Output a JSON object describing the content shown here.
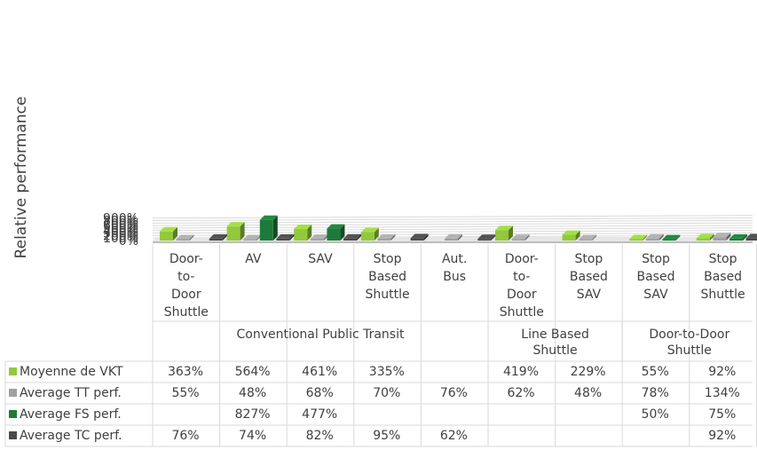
{
  "chart_data": {
    "type": "bar",
    "ylabel": "Relative performance",
    "ylim": [
      0,
      900
    ],
    "yticks": [
      "0%",
      "100%",
      "200%",
      "300%",
      "400%",
      "500%",
      "600%",
      "700%",
      "800%",
      "900%"
    ],
    "categories": [
      "Door-to-Door Shuttle",
      "AV",
      "SAV",
      "Stop Based Shuttle",
      "Aut. Bus",
      "Door-to-Door Shuttle",
      "Stop Based SAV",
      "Stop Based SAV",
      "Stop Based Shuttle"
    ],
    "category_labels": [
      [
        "Door-",
        "to-",
        "Door",
        "Shuttle"
      ],
      [
        "AV"
      ],
      [
        "SAV"
      ],
      [
        "Stop",
        "Based",
        "Shuttle"
      ],
      [
        "Aut.",
        "Bus"
      ],
      [
        "Door-",
        "to-",
        "Door",
        "Shuttle"
      ],
      [
        "Stop",
        "Based",
        "SAV"
      ],
      [
        "Stop",
        "Based",
        "SAV"
      ],
      [
        "Stop",
        "Based",
        "Shuttle"
      ]
    ],
    "groups": [
      {
        "lines": [
          "Conventional Public Transit"
        ],
        "span": 5
      },
      {
        "lines": [
          "Line Based",
          "Shuttle"
        ],
        "span": 2
      },
      {
        "lines": [
          "Door-to-Door",
          "Shuttle"
        ],
        "span": 2
      }
    ],
    "series": [
      {
        "name": "Moyenne de VKT",
        "color": "#92c83e",
        "values": [
          363,
          564,
          461,
          335,
          null,
          419,
          229,
          55,
          92
        ],
        "labels": [
          "363%",
          "564%",
          "461%",
          "335%",
          "",
          "419%",
          "229%",
          "55%",
          "92%"
        ]
      },
      {
        "name": "Average TT perf.",
        "color": "#a0a0a0",
        "values": [
          55,
          48,
          68,
          70,
          76,
          62,
          48,
          78,
          134
        ],
        "labels": [
          "55%",
          "48%",
          "68%",
          "70%",
          "76%",
          "62%",
          "48%",
          "78%",
          "134%"
        ]
      },
      {
        "name": "Average FS perf.",
        "color": "#1e7a3c",
        "values": [
          null,
          827,
          477,
          null,
          null,
          null,
          null,
          50,
          75
        ],
        "labels": [
          "",
          "827%",
          "477%",
          "",
          "",
          "",
          "",
          "50%",
          "75%"
        ]
      },
      {
        "name": "Average TC perf.",
        "color": "#4a4a4a",
        "values": [
          76,
          74,
          82,
          95,
          62,
          null,
          null,
          null,
          92
        ],
        "labels": [
          "76%",
          "74%",
          "82%",
          "95%",
          "62%",
          "",
          "",
          "",
          "92%"
        ]
      }
    ],
    "grid": true,
    "legend": "data-table"
  }
}
